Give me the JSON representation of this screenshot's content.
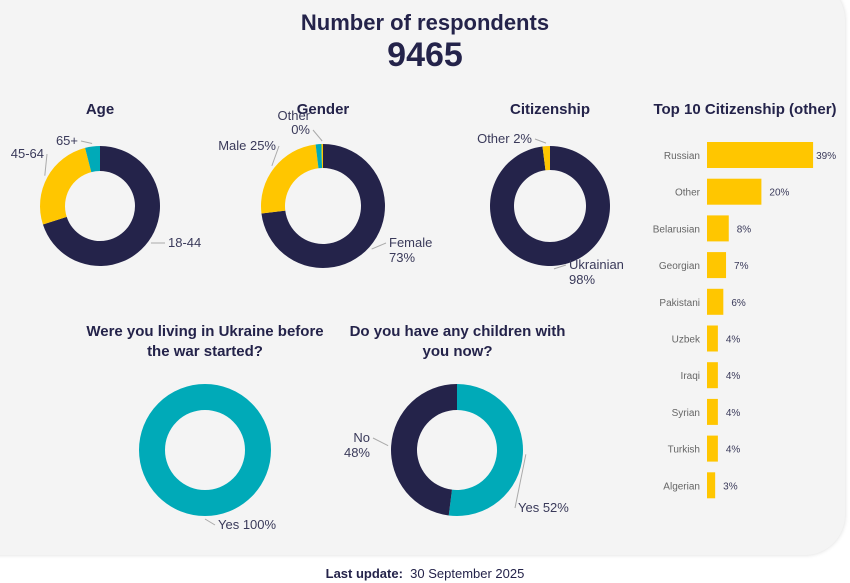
{
  "header": {
    "title": "Number of respondents",
    "count": "9465"
  },
  "footer": {
    "label": "Last update:",
    "date": "30 September 2025"
  },
  "colors": {
    "dark": "#24234a",
    "yellow": "#ffc600",
    "teal": "#00aab8"
  },
  "chart_data": [
    {
      "type": "pie",
      "title": "Age",
      "slices": [
        {
          "label": "18-44",
          "value": 70,
          "color": "#24234a"
        },
        {
          "label": "45-64",
          "value": 26,
          "color": "#ffc600"
        },
        {
          "label": "65+",
          "value": 4,
          "color": "#00aab8"
        }
      ]
    },
    {
      "type": "pie",
      "title": "Gender",
      "slices": [
        {
          "label": "Female 73%",
          "value": 73,
          "color": "#24234a"
        },
        {
          "label": "Male 25%",
          "value": 25,
          "color": "#ffc600"
        },
        {
          "label": "",
          "value": 1.5,
          "color": "#00aab8"
        },
        {
          "label": "Other 0%",
          "value": 0.4,
          "color": "#ffc600"
        }
      ]
    },
    {
      "type": "pie",
      "title": "Citizenship",
      "slices": [
        {
          "label": "Ukrainian 98%",
          "value": 98,
          "color": "#24234a"
        },
        {
          "label": "Other 2%",
          "value": 2,
          "color": "#ffc600"
        }
      ]
    },
    {
      "type": "pie",
      "title": "Were you living in Ukraine before the war started?",
      "slices": [
        {
          "label": "Yes 100%",
          "value": 100,
          "color": "#00aab8"
        }
      ]
    },
    {
      "type": "pie",
      "title": "Do you have any children with you now?",
      "slices": [
        {
          "label": "Yes 52%",
          "value": 52,
          "color": "#00aab8"
        },
        {
          "label": "No 48%",
          "value": 48,
          "color": "#24234a"
        }
      ]
    },
    {
      "type": "bar",
      "orientation": "horizontal",
      "title": "Top 10 Citizenship (other)",
      "categories": [
        "Russian",
        "Other",
        "Belarusian",
        "Georgian",
        "Pakistani",
        "Uzbek",
        "Iraqi",
        "Syrian",
        "Turkish",
        "Algerian"
      ],
      "values": [
        39,
        20,
        8,
        7,
        6,
        4,
        4,
        4,
        4,
        3
      ],
      "labels": [
        "39%",
        "20%",
        "8%",
        "7%",
        "6%",
        "4%",
        "4%",
        "4%",
        "4%",
        "3%"
      ],
      "color": "#ffc600"
    }
  ]
}
